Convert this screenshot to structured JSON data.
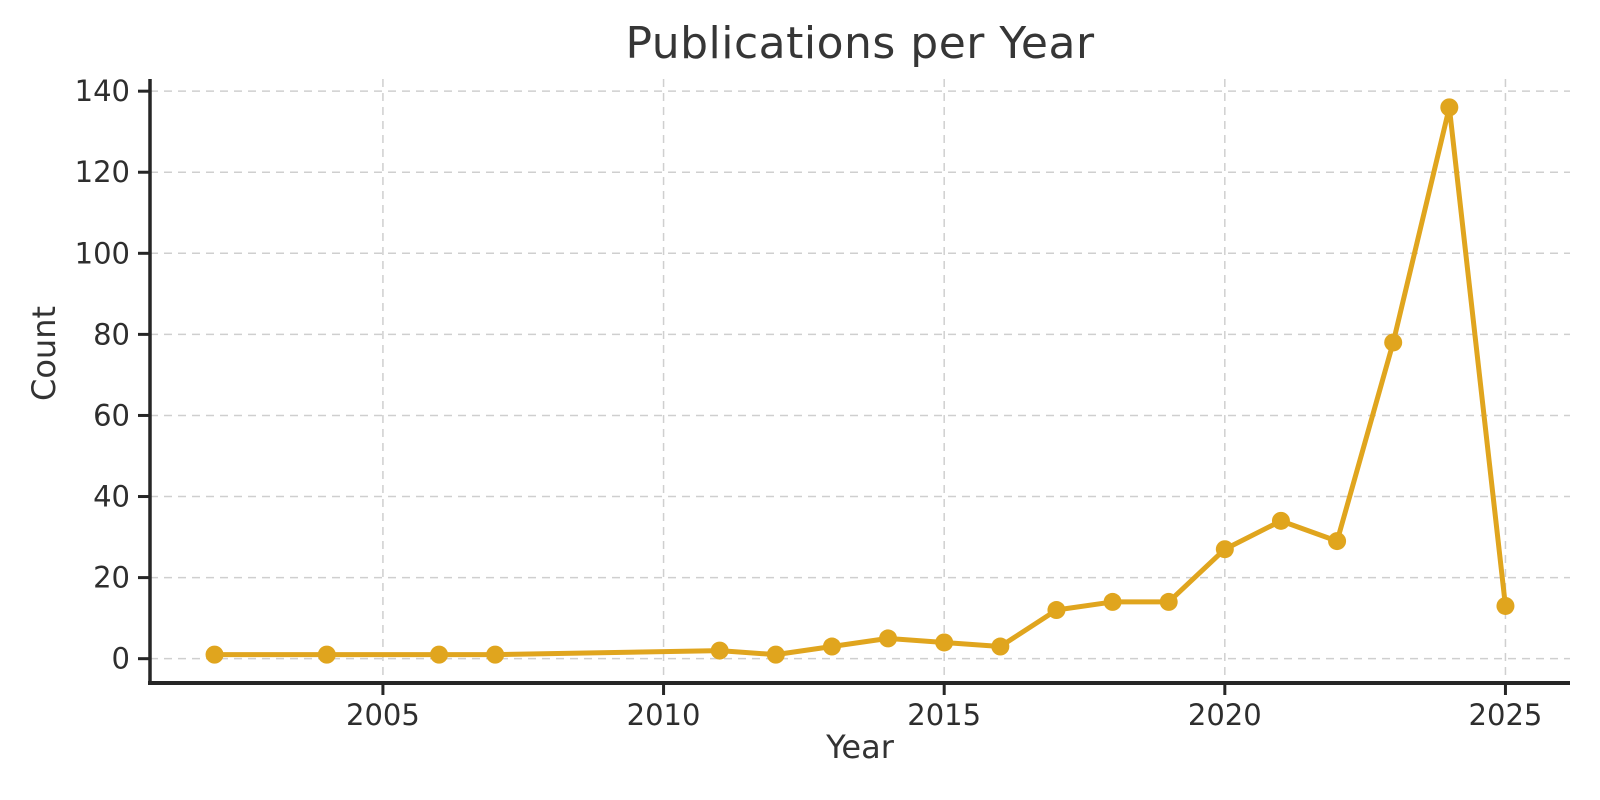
{
  "chart_data": {
    "type": "line",
    "title": "Publications per Year",
    "xlabel": "Year",
    "ylabel": "Count",
    "series": [
      {
        "name": "Publications",
        "x": [
          2002,
          2004,
          2006,
          2007,
          2011,
          2012,
          2013,
          2014,
          2015,
          2016,
          2017,
          2018,
          2019,
          2020,
          2021,
          2022,
          2023,
          2024,
          2025
        ],
        "y": [
          1,
          1,
          1,
          1,
          2,
          1,
          3,
          5,
          4,
          3,
          12,
          14,
          14,
          27,
          34,
          29,
          78,
          136,
          13
        ]
      }
    ],
    "x_ticks": [
      2005,
      2010,
      2015,
      2020,
      2025
    ],
    "y_ticks": [
      0,
      20,
      40,
      60,
      80,
      100,
      120,
      140
    ],
    "xlim": [
      2000.85,
      2026.15
    ],
    "ylim": [
      -6,
      143
    ],
    "grid": true,
    "legend": "none",
    "line_color": "#E0A51E",
    "marker": "circle",
    "marker_radius": 9,
    "line_width": 5,
    "grid_color": "#cfcfcf",
    "spine_color": "#262626",
    "text_color": "#333333",
    "background": "#ffffff"
  }
}
